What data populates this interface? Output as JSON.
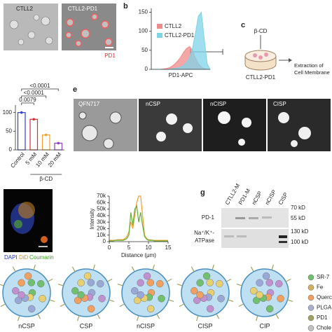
{
  "panel_labels": [
    "b",
    "c",
    "e",
    "g"
  ],
  "panel_a": {
    "labels": [
      "CTLL2",
      "CTLL2-PD1"
    ],
    "marker": "PD1"
  },
  "panel_c": {
    "reagent": "β-CD",
    "cell": "CTLL2-PD1",
    "step": [
      "Extraction of",
      "Cell Membrane"
    ]
  },
  "panel_e": {
    "labels": [
      "QFN717",
      "nCSP",
      "nCISP",
      "CISP"
    ]
  },
  "panel_f": {
    "stains": [
      "DAPI",
      "DiD",
      "Coumarin"
    ]
  },
  "panel_g": {
    "lanes": [
      "CTLL2-M",
      "PD1-M",
      "nCSP",
      "nCISP",
      "CISP"
    ],
    "rows": [
      "PD-1",
      "Na⁺/K⁺-",
      "ATPase"
    ],
    "markers": [
      "70 kD",
      "55 kD",
      "130 kD",
      "100 kD"
    ]
  },
  "schematic": {
    "particles": [
      "nCSP",
      "CSP",
      "nCISP",
      "CISP",
      "CIP"
    ],
    "legend": [
      "SR-7",
      "Fe",
      "Querc",
      "PLGA",
      "PD1",
      "Chole"
    ]
  },
  "chart_data": [
    {
      "type": "area",
      "xlabel": "PD1-APC",
      "x": [
        0,
        1,
        2,
        3,
        4,
        5,
        6,
        7,
        8,
        9,
        10,
        11,
        12,
        13,
        14,
        15,
        16,
        17,
        18,
        19,
        20
      ],
      "xlim": [
        0,
        20
      ],
      "ylim": [
        0,
        160
      ],
      "yticks": [
        0,
        50,
        100,
        150
      ],
      "series": [
        {
          "name": "CTLL2",
          "color": "#f08a8a",
          "values": [
            0,
            0,
            0,
            0,
            1,
            2,
            4,
            8,
            14,
            22,
            32,
            45,
            55,
            60,
            50,
            30,
            15,
            6,
            2,
            0,
            0
          ]
        },
        {
          "name": "CTLL2-PD1",
          "color": "#7fd3e8",
          "values": [
            0,
            0,
            0,
            0,
            0,
            0,
            0,
            1,
            2,
            4,
            6,
            10,
            18,
            30,
            55,
            95,
            140,
            150,
            80,
            15,
            0
          ]
        }
      ]
    },
    {
      "type": "bar",
      "categories": [
        "Control",
        "5 mM",
        "10 mM",
        "20 mM"
      ],
      "xlabel": "β-CD",
      "values": [
        100,
        82,
        40,
        18
      ],
      "colors": [
        "#2f3fd0",
        "#d83030",
        "#f0a030",
        "#9040c0"
      ],
      "ylim": [
        0,
        120
      ],
      "yticks": [
        0,
        50,
        100
      ],
      "annotations": [
        "<0.0001",
        "<0.0001",
        "0.0079"
      ]
    },
    {
      "type": "line",
      "xlabel": "Distance (μm)",
      "ylabel": "Intensity",
      "x": [
        0,
        0.5,
        1,
        1.5,
        2,
        2.5,
        3,
        3.5,
        4,
        4.5,
        5,
        5.5,
        6,
        6.5,
        7,
        7.5,
        8,
        8.5,
        9,
        9.5,
        10,
        10.5,
        11,
        11.5,
        12,
        12.5,
        13,
        13.5,
        14,
        14.5,
        15
      ],
      "xlim": [
        0,
        15
      ],
      "xticks": [
        0,
        5,
        10,
        15
      ],
      "ylim": [
        0,
        70000
      ],
      "yticks": [
        {
          "value": 0,
          "label": "0"
        },
        {
          "value": 10000,
          "label": "10k"
        },
        {
          "value": 20000,
          "label": "20k"
        },
        {
          "value": 30000,
          "label": "30k"
        },
        {
          "value": 40000,
          "label": "40k"
        },
        {
          "value": 50000,
          "label": "50k"
        },
        {
          "value": 60000,
          "label": "60k"
        },
        {
          "value": 70000,
          "label": "70k"
        }
      ],
      "series": [
        {
          "color": "#f0a030",
          "values": [
            2000,
            2000,
            2000,
            2000,
            3000,
            3000,
            3000,
            3000,
            5000,
            8000,
            15000,
            30000,
            20000,
            40000,
            60000,
            70000,
            70000,
            40000,
            10000,
            5000,
            3000,
            3000,
            2000,
            2000,
            2000,
            2000,
            2000,
            2000,
            2000,
            2000,
            2000
          ]
        },
        {
          "color": "#60b030",
          "values": [
            1000,
            1000,
            1000,
            2000,
            2000,
            2000,
            2000,
            2000,
            3000,
            5000,
            10000,
            45000,
            25000,
            50000,
            55000,
            30000,
            45000,
            25000,
            8000,
            4000,
            2000,
            2000,
            2000,
            1000,
            1000,
            1000,
            1000,
            1000,
            1000,
            1000,
            1000
          ]
        }
      ]
    }
  ]
}
